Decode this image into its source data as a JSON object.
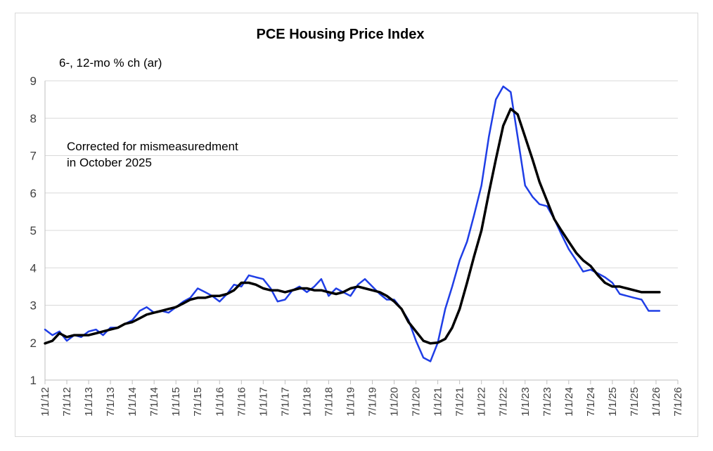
{
  "chart_data": {
    "type": "line",
    "title": "PCE Housing Price Index",
    "ylabel": "6-, 12-mo % ch (ar)",
    "annotation": [
      "Corrected for mismeasuredment",
      "in October 2025"
    ],
    "ylim": [
      1,
      9
    ],
    "yticks": [
      1,
      2,
      3,
      4,
      5,
      6,
      7,
      8,
      9
    ],
    "xlim": [
      2012.0,
      2026.5
    ],
    "xticks": [
      "1/1/12",
      "7/1/12",
      "1/1/13",
      "7/1/13",
      "1/1/14",
      "7/1/14",
      "1/1/15",
      "7/1/15",
      "1/1/16",
      "7/1/16",
      "1/1/17",
      "7/1/17",
      "1/1/18",
      "7/1/18",
      "1/1/19",
      "7/1/19",
      "1/1/20",
      "7/1/20",
      "1/1/21",
      "7/1/21",
      "1/1/22",
      "7/1/22",
      "1/1/23",
      "7/1/23",
      "1/1/24",
      "7/1/24",
      "1/1/25",
      "7/1/25",
      "1/1/26",
      "7/1/26"
    ],
    "grid": true,
    "colors": {
      "six_month": "#1f3ee6",
      "twelve_month": "#000000",
      "grid": "#d9d9d9",
      "axis": "#bfbfbf"
    },
    "series": [
      {
        "name": "6-mo % ch (ar)",
        "x": [
          2012.0,
          2012.17,
          2012.33,
          2012.5,
          2012.67,
          2012.83,
          2013.0,
          2013.17,
          2013.33,
          2013.5,
          2013.67,
          2013.83,
          2014.0,
          2014.17,
          2014.33,
          2014.5,
          2014.67,
          2014.83,
          2015.0,
          2015.17,
          2015.33,
          2015.5,
          2015.67,
          2015.83,
          2016.0,
          2016.17,
          2016.33,
          2016.5,
          2016.67,
          2016.83,
          2017.0,
          2017.17,
          2017.33,
          2017.5,
          2017.67,
          2017.83,
          2018.0,
          2018.17,
          2018.33,
          2018.5,
          2018.67,
          2018.83,
          2019.0,
          2019.17,
          2019.33,
          2019.5,
          2019.67,
          2019.83,
          2020.0,
          2020.17,
          2020.33,
          2020.5,
          2020.67,
          2020.83,
          2021.0,
          2021.17,
          2021.33,
          2021.5,
          2021.67,
          2021.83,
          2022.0,
          2022.17,
          2022.33,
          2022.5,
          2022.67,
          2022.83,
          2023.0,
          2023.17,
          2023.33,
          2023.5,
          2023.67,
          2023.83,
          2024.0,
          2024.17,
          2024.33,
          2024.5,
          2024.67,
          2024.83,
          2025.0,
          2025.17,
          2025.33,
          2025.5,
          2025.67,
          2025.83,
          2026.0,
          2026.08
        ],
        "values": [
          2.35,
          2.2,
          2.3,
          2.05,
          2.2,
          2.15,
          2.3,
          2.35,
          2.2,
          2.4,
          2.4,
          2.5,
          2.6,
          2.85,
          2.95,
          2.8,
          2.85,
          2.8,
          2.95,
          3.1,
          3.2,
          3.45,
          3.35,
          3.25,
          3.1,
          3.3,
          3.55,
          3.5,
          3.8,
          3.75,
          3.7,
          3.45,
          3.1,
          3.15,
          3.4,
          3.5,
          3.35,
          3.5,
          3.7,
          3.25,
          3.45,
          3.35,
          3.25,
          3.55,
          3.7,
          3.5,
          3.3,
          3.15,
          3.15,
          2.9,
          2.6,
          2.05,
          1.6,
          1.5,
          2.0,
          2.9,
          3.5,
          4.2,
          4.7,
          5.4,
          6.2,
          7.5,
          8.5,
          8.85,
          8.7,
          7.5,
          6.2,
          5.9,
          5.7,
          5.65,
          5.3,
          4.9,
          4.5,
          4.2,
          3.9,
          3.95,
          3.85,
          3.75,
          3.6,
          3.3,
          3.25,
          3.2,
          3.15,
          2.85,
          2.85,
          2.85
        ]
      },
      {
        "name": "12-mo % ch (ar)",
        "x": [
          2012.0,
          2012.17,
          2012.33,
          2012.5,
          2012.67,
          2012.83,
          2013.0,
          2013.17,
          2013.33,
          2013.5,
          2013.67,
          2013.83,
          2014.0,
          2014.17,
          2014.33,
          2014.5,
          2014.67,
          2014.83,
          2015.0,
          2015.17,
          2015.33,
          2015.5,
          2015.67,
          2015.83,
          2016.0,
          2016.17,
          2016.33,
          2016.5,
          2016.67,
          2016.83,
          2017.0,
          2017.17,
          2017.33,
          2017.5,
          2017.67,
          2017.83,
          2018.0,
          2018.17,
          2018.33,
          2018.5,
          2018.67,
          2018.83,
          2019.0,
          2019.17,
          2019.33,
          2019.5,
          2019.67,
          2019.83,
          2020.0,
          2020.17,
          2020.33,
          2020.5,
          2020.67,
          2020.83,
          2021.0,
          2021.17,
          2021.33,
          2021.5,
          2021.67,
          2021.83,
          2022.0,
          2022.17,
          2022.33,
          2022.5,
          2022.67,
          2022.83,
          2023.0,
          2023.17,
          2023.33,
          2023.5,
          2023.67,
          2023.83,
          2024.0,
          2024.17,
          2024.33,
          2024.5,
          2024.67,
          2024.83,
          2025.0,
          2025.17,
          2025.33,
          2025.5,
          2025.67,
          2025.83,
          2026.0,
          2026.08
        ],
        "values": [
          1.98,
          2.05,
          2.25,
          2.15,
          2.2,
          2.2,
          2.2,
          2.25,
          2.3,
          2.35,
          2.4,
          2.5,
          2.55,
          2.65,
          2.75,
          2.8,
          2.85,
          2.9,
          2.95,
          3.05,
          3.15,
          3.2,
          3.2,
          3.25,
          3.25,
          3.3,
          3.4,
          3.6,
          3.6,
          3.55,
          3.45,
          3.4,
          3.4,
          3.35,
          3.4,
          3.45,
          3.45,
          3.4,
          3.4,
          3.35,
          3.3,
          3.35,
          3.45,
          3.5,
          3.45,
          3.4,
          3.35,
          3.25,
          3.1,
          2.9,
          2.55,
          2.3,
          2.05,
          1.98,
          2.0,
          2.1,
          2.4,
          2.9,
          3.6,
          4.3,
          5.0,
          6.0,
          6.9,
          7.8,
          8.25,
          8.1,
          7.5,
          6.9,
          6.3,
          5.8,
          5.3,
          5.0,
          4.7,
          4.4,
          4.2,
          4.05,
          3.8,
          3.6,
          3.5,
          3.5,
          3.45,
          3.4,
          3.35,
          3.35,
          3.35,
          3.35
        ]
      }
    ]
  }
}
